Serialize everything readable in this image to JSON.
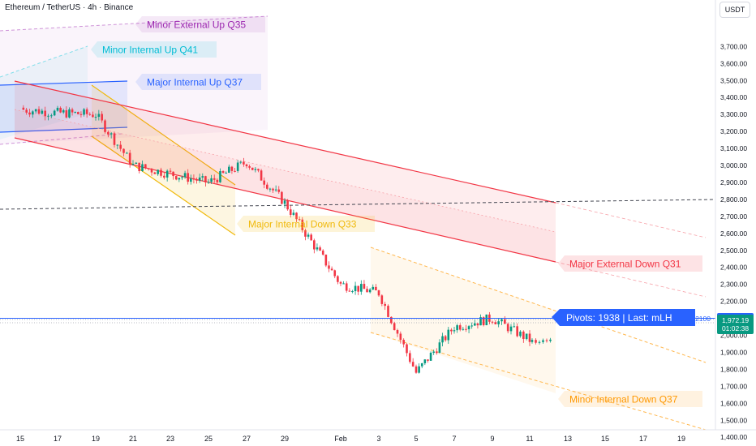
{
  "header": {
    "title": "Ethereum / TetherUS · 4h · Binance",
    "scale_label": "USDT"
  },
  "y_axis": {
    "ticks": [
      3700,
      3600,
      3500,
      3400,
      3300,
      3200,
      3100,
      3000,
      2900,
      2800,
      2700,
      2600,
      2500,
      2400,
      2300,
      2200,
      2100,
      2000,
      1900,
      1800,
      1700,
      1600,
      1500,
      1400
    ]
  },
  "x_axis": {
    "ticks": [
      "15",
      "17",
      "19",
      "21",
      "23",
      "25",
      "27",
      "29",
      "Feb",
      "3",
      "5",
      "7",
      "9",
      "11",
      "13",
      "15",
      "17",
      "19"
    ]
  },
  "horizontal_line": {
    "label": "2100",
    "price_tag": "2,100.00",
    "value": 2100,
    "color": "#2962ff"
  },
  "current_price": {
    "value": 1972.19,
    "label": "1,972.19",
    "countdown": "01:02:38",
    "color": "#089981"
  },
  "pivots_badge": {
    "text": "Pivots: 1938 | Last: mLH"
  },
  "labels": [
    {
      "id": "minor-external-up",
      "text": "Minor External Up  Q35",
      "color": "#9c27b0"
    },
    {
      "id": "minor-internal-up",
      "text": "Minor Internal Up  Q41",
      "color": "#00bcd4"
    },
    {
      "id": "major-internal-up",
      "text": "Major Internal Up  Q37",
      "color": "#2962ff"
    },
    {
      "id": "major-internal-down",
      "text": "Major Internal Down  Q33",
      "color": "#f0b90b"
    },
    {
      "id": "major-external-down",
      "text": "Major External Down  Q31",
      "color": "#f23645"
    },
    {
      "id": "minor-internal-down",
      "text": "Minor Internal Down  Q37",
      "color": "#ff9800"
    }
  ],
  "colors": {
    "up": "#089981",
    "down": "#f23645",
    "axis_text": "#131722",
    "grid": "#f0f3fa"
  },
  "chart_data": {
    "type": "candlestick",
    "symbol": "Ethereum / TetherUS",
    "interval": "4h",
    "exchange": "Binance",
    "ylim": [
      1350,
      3790
    ],
    "close_path": [
      {
        "day": "15",
        "close": 3330
      },
      {
        "day": "17",
        "close": 3310
      },
      {
        "day": "19",
        "close": 3300
      },
      {
        "day": "21",
        "close": 3000
      },
      {
        "day": "23",
        "close": 2950
      },
      {
        "day": "25",
        "close": 2900
      },
      {
        "day": "27",
        "close": 3020
      },
      {
        "day": "29",
        "close": 2780
      },
      {
        "day": "Feb",
        "close": 2300
      },
      {
        "day": "3",
        "close": 2250
      },
      {
        "day": "5",
        "close": 1780
      },
      {
        "day": "7",
        "close": 2050
      },
      {
        "day": "9",
        "close": 2100
      },
      {
        "day": "11",
        "close": 1972
      }
    ]
  }
}
